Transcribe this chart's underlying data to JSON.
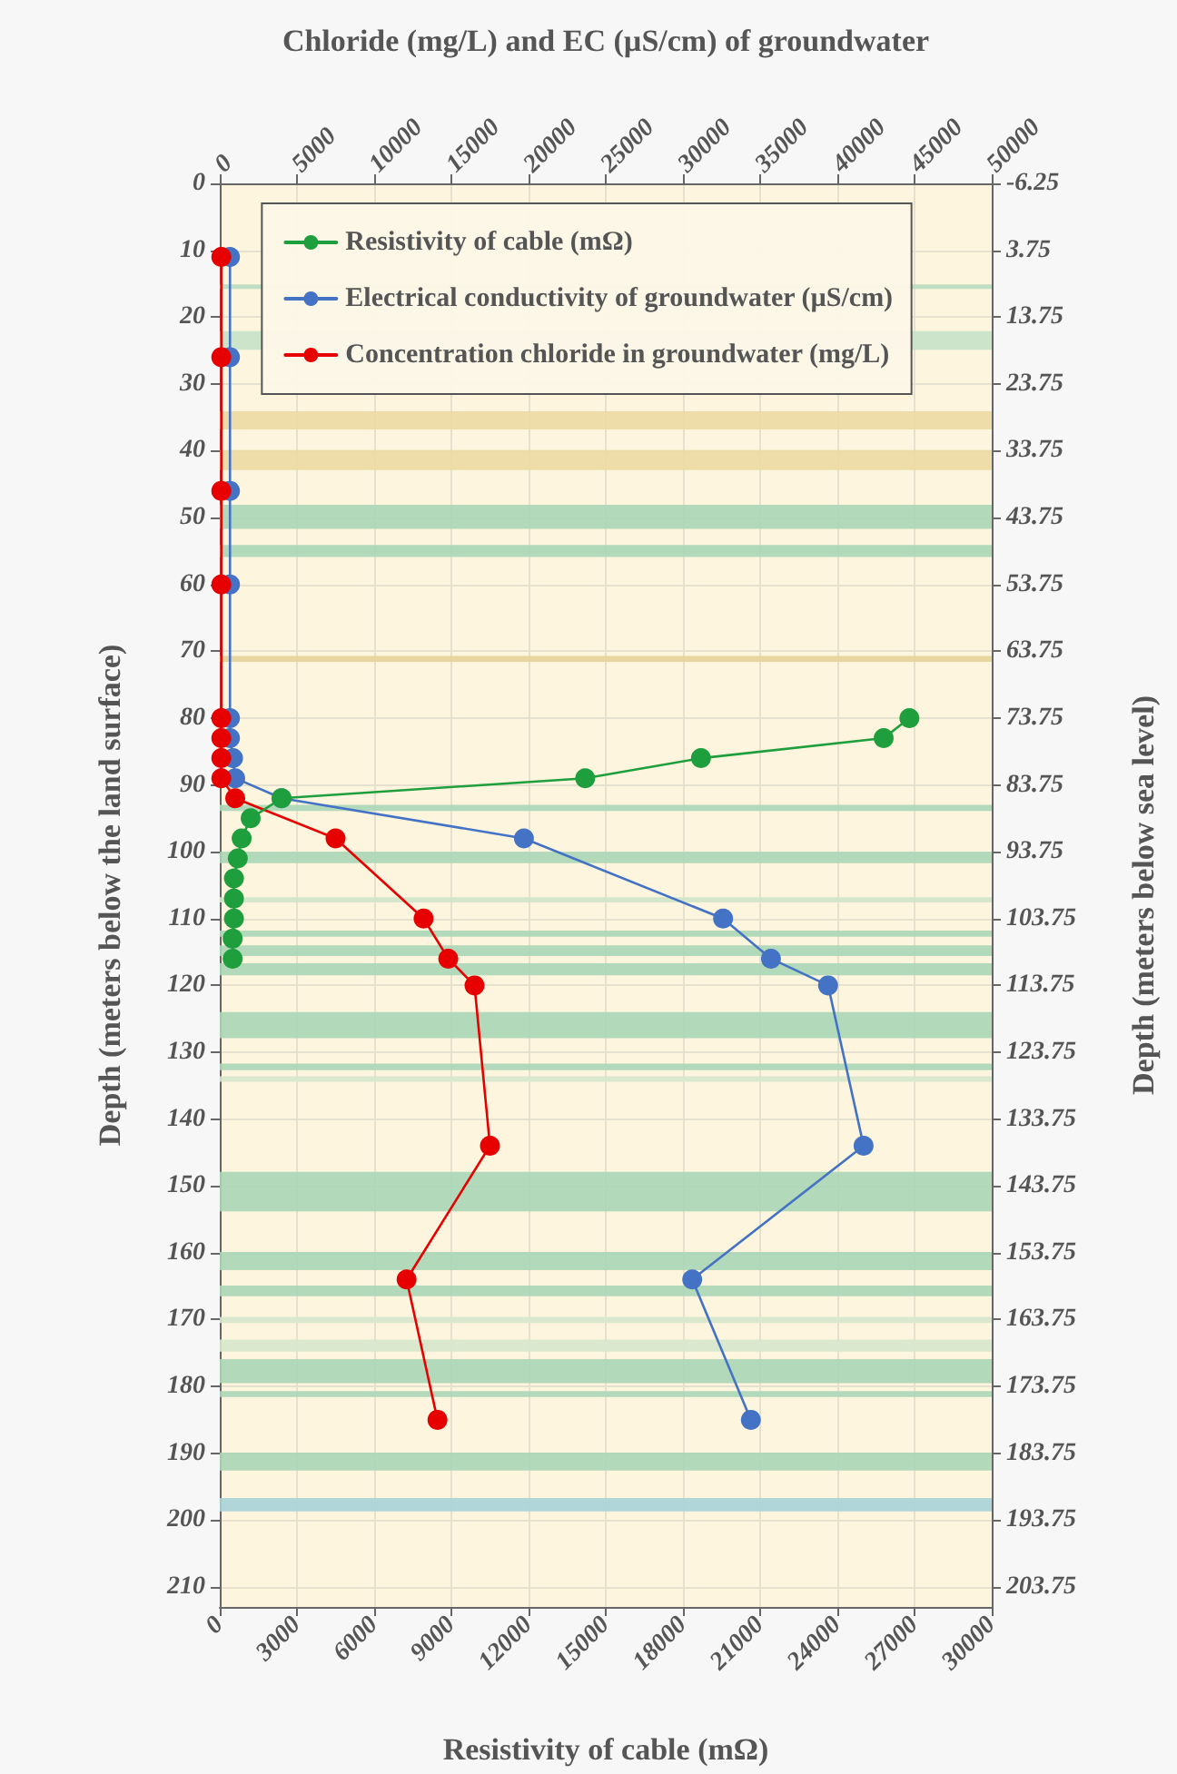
{
  "chart_data": {
    "type": "line",
    "xlabel": "Resistivity of cable (mΩ)",
    "x2label": "Chloride (mg/L) and EC (µS/cm) of groundwater",
    "ylabel": "Depth (meters below the land surface)",
    "y2label": "Depth (meters below sea level)",
    "series": [
      {
        "name": "Resistivity of cable (mΩ)",
        "color": "#1e9e3c",
        "x": [
          26800,
          25800,
          18700,
          14200,
          2400,
          1200,
          850,
          700,
          550,
          550,
          550,
          500,
          500
        ],
        "values": [
          80,
          83,
          86,
          89,
          92,
          95,
          98,
          101,
          104,
          107,
          110,
          113,
          116
        ]
      },
      {
        "name": "Electrical conductivity of groundwater (µS/cm)",
        "color": "#4472c4",
        "axis": "x2",
        "x": [
          660,
          660,
          660,
          660,
          660,
          660,
          860,
          1000,
          4000,
          19700,
          32600,
          35700,
          39400,
          41700,
          30600,
          34400
        ],
        "values": [
          11,
          26,
          46,
          60,
          80,
          83,
          86,
          89,
          92,
          98,
          110,
          116,
          120,
          144,
          164,
          185
        ]
      },
      {
        "name": "Concentration chloride in groundwater (mg/L)",
        "color": "#e60000",
        "axis": "x2",
        "x": [
          100,
          100,
          100,
          100,
          100,
          100,
          100,
          100,
          1000,
          7500,
          13200,
          14800,
          16500,
          17500,
          12100,
          14100
        ],
        "values": [
          11,
          26,
          46,
          60,
          80,
          83,
          86,
          89,
          92,
          98,
          110,
          116,
          120,
          144,
          164,
          185
        ]
      }
    ],
    "xlim": [
      0,
      30000
    ],
    "xticks": [
      0,
      3000,
      6000,
      9000,
      12000,
      15000,
      18000,
      21000,
      24000,
      27000,
      30000
    ],
    "x2lim": [
      0,
      50000
    ],
    "x2ticks": [
      0,
      5000,
      10000,
      15000,
      20000,
      25000,
      30000,
      35000,
      40000,
      45000,
      50000
    ],
    "ylim": [
      213,
      0
    ],
    "yticks": [
      0,
      10,
      20,
      30,
      40,
      50,
      60,
      70,
      80,
      90,
      100,
      110,
      120,
      130,
      140,
      150,
      160,
      170,
      180,
      190,
      200,
      210
    ],
    "y2lim": [
      206.75,
      -6.25
    ],
    "y2ticks": [
      -6.25,
      3.75,
      13.75,
      23.75,
      33.75,
      43.75,
      53.75,
      63.75,
      73.75,
      83.75,
      93.75,
      103.75,
      113.75,
      123.75,
      133.75,
      143.75,
      153.75,
      163.75,
      173.75,
      183.75,
      193.75,
      203.75
    ],
    "bands": [
      {
        "axis": "y",
        "from": 15.1,
        "to": 15.8,
        "color": "#b9dcc0"
      },
      {
        "axis": "y",
        "from": 22.1,
        "to": 24.9,
        "color": "#c6e2c8"
      },
      {
        "axis": "y",
        "from": 34.1,
        "to": 36.8,
        "color": "#ecd9a3"
      },
      {
        "axis": "y",
        "from": 39.9,
        "to": 42.9,
        "color": "#ecd9a3"
      },
      {
        "axis": "y",
        "from": 48.1,
        "to": 51.7,
        "color": "#aad6b6"
      },
      {
        "axis": "y",
        "from": 54.1,
        "to": 55.9,
        "color": "#aad6b6"
      },
      {
        "axis": "y",
        "from": 70.7,
        "to": 71.6,
        "color": "#e6d39a"
      },
      {
        "axis": "y",
        "from": 93.0,
        "to": 93.9,
        "color": "#aad6b6"
      },
      {
        "axis": "y",
        "from": 100.0,
        "to": 101.7,
        "color": "#aad6b6"
      },
      {
        "axis": "y",
        "from": 106.8,
        "to": 107.6,
        "color": "#cfe6c8"
      },
      {
        "axis": "y",
        "from": 111.8,
        "to": 112.7,
        "color": "#aad6b6"
      },
      {
        "axis": "y",
        "from": 114.0,
        "to": 115.6,
        "color": "#aad6b6"
      },
      {
        "axis": "y",
        "from": 116.7,
        "to": 118.5,
        "color": "#aad6b6"
      },
      {
        "axis": "y",
        "from": 124.0,
        "to": 127.9,
        "color": "#aad6b6"
      },
      {
        "axis": "y",
        "from": 131.7,
        "to": 132.7,
        "color": "#aad6b6"
      },
      {
        "axis": "y",
        "from": 133.6,
        "to": 134.4,
        "color": "#d6e8cc"
      },
      {
        "axis": "y",
        "from": 147.9,
        "to": 153.8,
        "color": "#aad6b6"
      },
      {
        "axis": "y",
        "from": 159.9,
        "to": 162.6,
        "color": "#aad6b6"
      },
      {
        "axis": "y",
        "from": 164.9,
        "to": 166.5,
        "color": "#aad6b6"
      },
      {
        "axis": "y",
        "from": 169.6,
        "to": 170.5,
        "color": "#d6e8cc"
      },
      {
        "axis": "y",
        "from": 173.0,
        "to": 174.8,
        "color": "#d6e8cc"
      },
      {
        "axis": "y",
        "from": 175.9,
        "to": 179.5,
        "color": "#aad6b6"
      },
      {
        "axis": "y",
        "from": 180.7,
        "to": 181.6,
        "color": "#aad6b6"
      },
      {
        "axis": "y",
        "from": 189.9,
        "to": 192.6,
        "color": "#aad6b6"
      },
      {
        "axis": "y",
        "from": 196.7,
        "to": 198.7,
        "color": "#a9d3d9"
      }
    ],
    "grid": true,
    "legend": "top",
    "marker": "circle",
    "line_style": "solid"
  }
}
